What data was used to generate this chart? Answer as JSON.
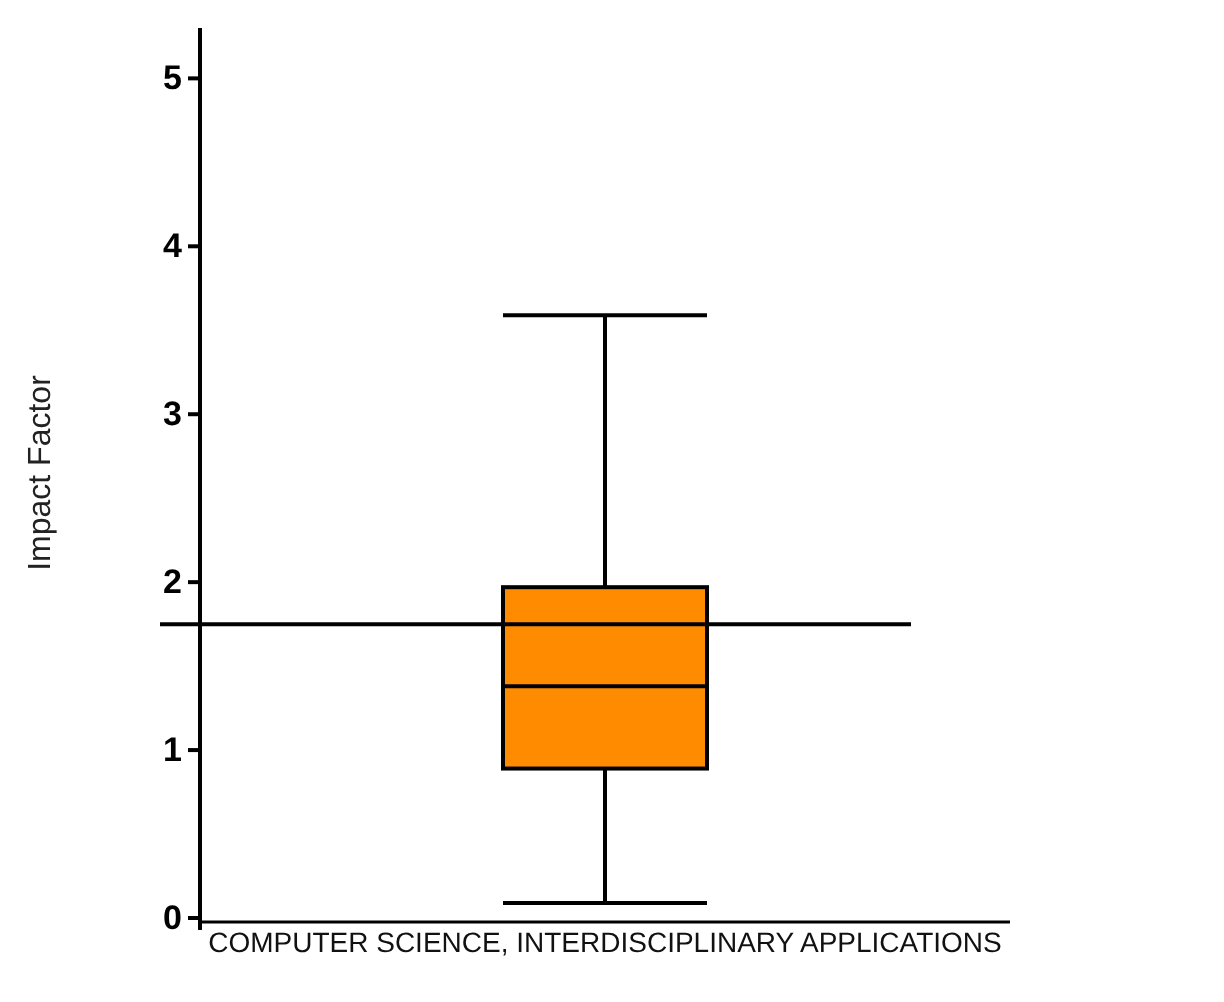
{
  "chart_data": {
    "type": "box",
    "ylabel": "Impact Factor",
    "categories": [
      "COMPUTER SCIENCE, INTERDISCIPLINARY APPLICATIONS"
    ],
    "series": [
      {
        "color": "#ff8c00",
        "boxes": [
          {
            "low": 0.09,
            "q1": 0.89,
            "median": 1.38,
            "q3": 1.97,
            "high": 3.59
          }
        ]
      }
    ],
    "ylim": [
      0,
      5.3
    ],
    "yticks": [
      0,
      1,
      2,
      3,
      4,
      5
    ],
    "ref_lines": [
      {
        "axis": "y",
        "value": 1.75
      }
    ],
    "grid": false
  }
}
